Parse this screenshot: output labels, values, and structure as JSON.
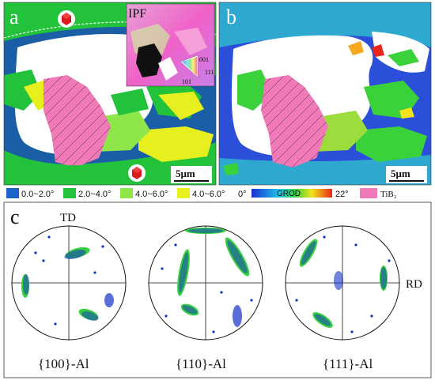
{
  "panel_a": {
    "letter": "a",
    "inset_label": "IPF",
    "inset_ticks": [
      "001",
      "111",
      "101"
    ],
    "scale_bar": "5μm"
  },
  "panel_b": {
    "letter": "b",
    "scale_bar": "5μm"
  },
  "legend": {
    "items": [
      {
        "label": "0.0~2.0°",
        "color": "#1e63c8"
      },
      {
        "label": "2.0~4.0°",
        "color": "#22c33a"
      },
      {
        "label": "4.0~6.0°",
        "color": "#8ee64a"
      },
      {
        "label": "4.0~6.0°",
        "color": "#e8ef1e"
      }
    ],
    "grod_start": "0°",
    "grod_label": "GROD",
    "grod_end": "22°",
    "tib2_label": "TiB₂",
    "tib2_color": "#f07ab8"
  },
  "panel_c": {
    "letter": "c",
    "td_label": "TD",
    "rd_label": "RD",
    "pole_figures": [
      {
        "label": "{100}-Al"
      },
      {
        "label": "{110}-Al"
      },
      {
        "label": "{111}-Al"
      }
    ]
  },
  "colors": {
    "misorientation_bg": "#22c33a",
    "matrix_blue": "#1a5fa6",
    "grod_bg": "#2b4fd9",
    "pole_blue": "#1432c8",
    "pole_green": "#37d13f"
  }
}
